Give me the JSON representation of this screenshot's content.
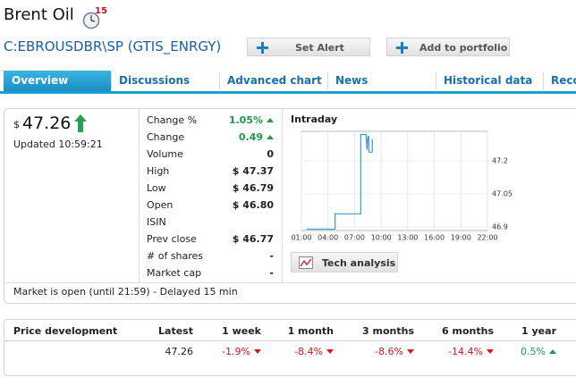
{
  "header": {
    "title": "Brent Oil",
    "alert_count": "15",
    "symbol": "C:EBROUSDBR\\SP",
    "exchange": "(GTIS_ENRGY)",
    "buttons": [
      "Set Alert",
      "Add to portfolio"
    ]
  },
  "tabs": [
    "Overview",
    "Discussions",
    "Advanced chart",
    "News",
    "Historical data",
    "Reco"
  ],
  "quote": {
    "currency": "$",
    "price": "47.26",
    "updated": "Updated 10:59:21"
  },
  "stats": [
    {
      "label": "Change %",
      "value": "1.05%",
      "trend": "up"
    },
    {
      "label": "Change",
      "value": "0.49",
      "trend": "up"
    },
    {
      "label": "Volume",
      "value": "0"
    },
    {
      "label": "High",
      "value": "$ 47.37"
    },
    {
      "label": "Low",
      "value": "$ 46.79"
    },
    {
      "label": "Open",
      "value": "$ 46.80"
    },
    {
      "label": "ISIN"
    },
    {
      "label": "Prev close",
      "value": "$ 46.77"
    },
    {
      "label": "# of shares",
      "value": "-"
    },
    {
      "label": "Market cap",
      "value": "-"
    }
  ],
  "intraday": {
    "title": "Intraday",
    "x": [
      1.6,
      4.8,
      4.8,
      7.7,
      7.7,
      8.3,
      8.4,
      8.5,
      8.6,
      8.6,
      9.0,
      9.0
    ],
    "values": [
      46.89,
      46.89,
      46.96,
      46.96,
      47.32,
      47.32,
      47.25,
      47.31,
      47.31,
      47.24,
      47.24,
      47.3
    ],
    "xlim": [
      1,
      22
    ],
    "xticks": [
      {
        "value": 1,
        "label": "01:00"
      },
      {
        "value": 4,
        "label": "04:00"
      },
      {
        "value": 7,
        "label": "07:00"
      },
      {
        "value": 10,
        "label": "10:00"
      },
      {
        "value": 13,
        "label": "13:00"
      },
      {
        "value": 16,
        "label": "16:00"
      },
      {
        "value": 19,
        "label": "19:00"
      },
      {
        "value": 22,
        "label": "22:00"
      }
    ],
    "ylim": [
      46.884,
      47.334
    ],
    "yticks": [
      46.9,
      47.05,
      47.2
    ],
    "color": "#3a9bd5",
    "grid": true,
    "button": "Tech analysis"
  },
  "market_status": "Market is open (until 21:59) - Delayed 15 min",
  "price_development": {
    "headers": [
      "Price development",
      "Latest",
      "1 week",
      "1 month",
      "3 months",
      "6 months",
      "1 year"
    ],
    "latest": "47.26",
    "changes": [
      "-1.9%",
      "-8.4%",
      "-8.6%",
      "-14.4%",
      "0.5%"
    ]
  }
}
